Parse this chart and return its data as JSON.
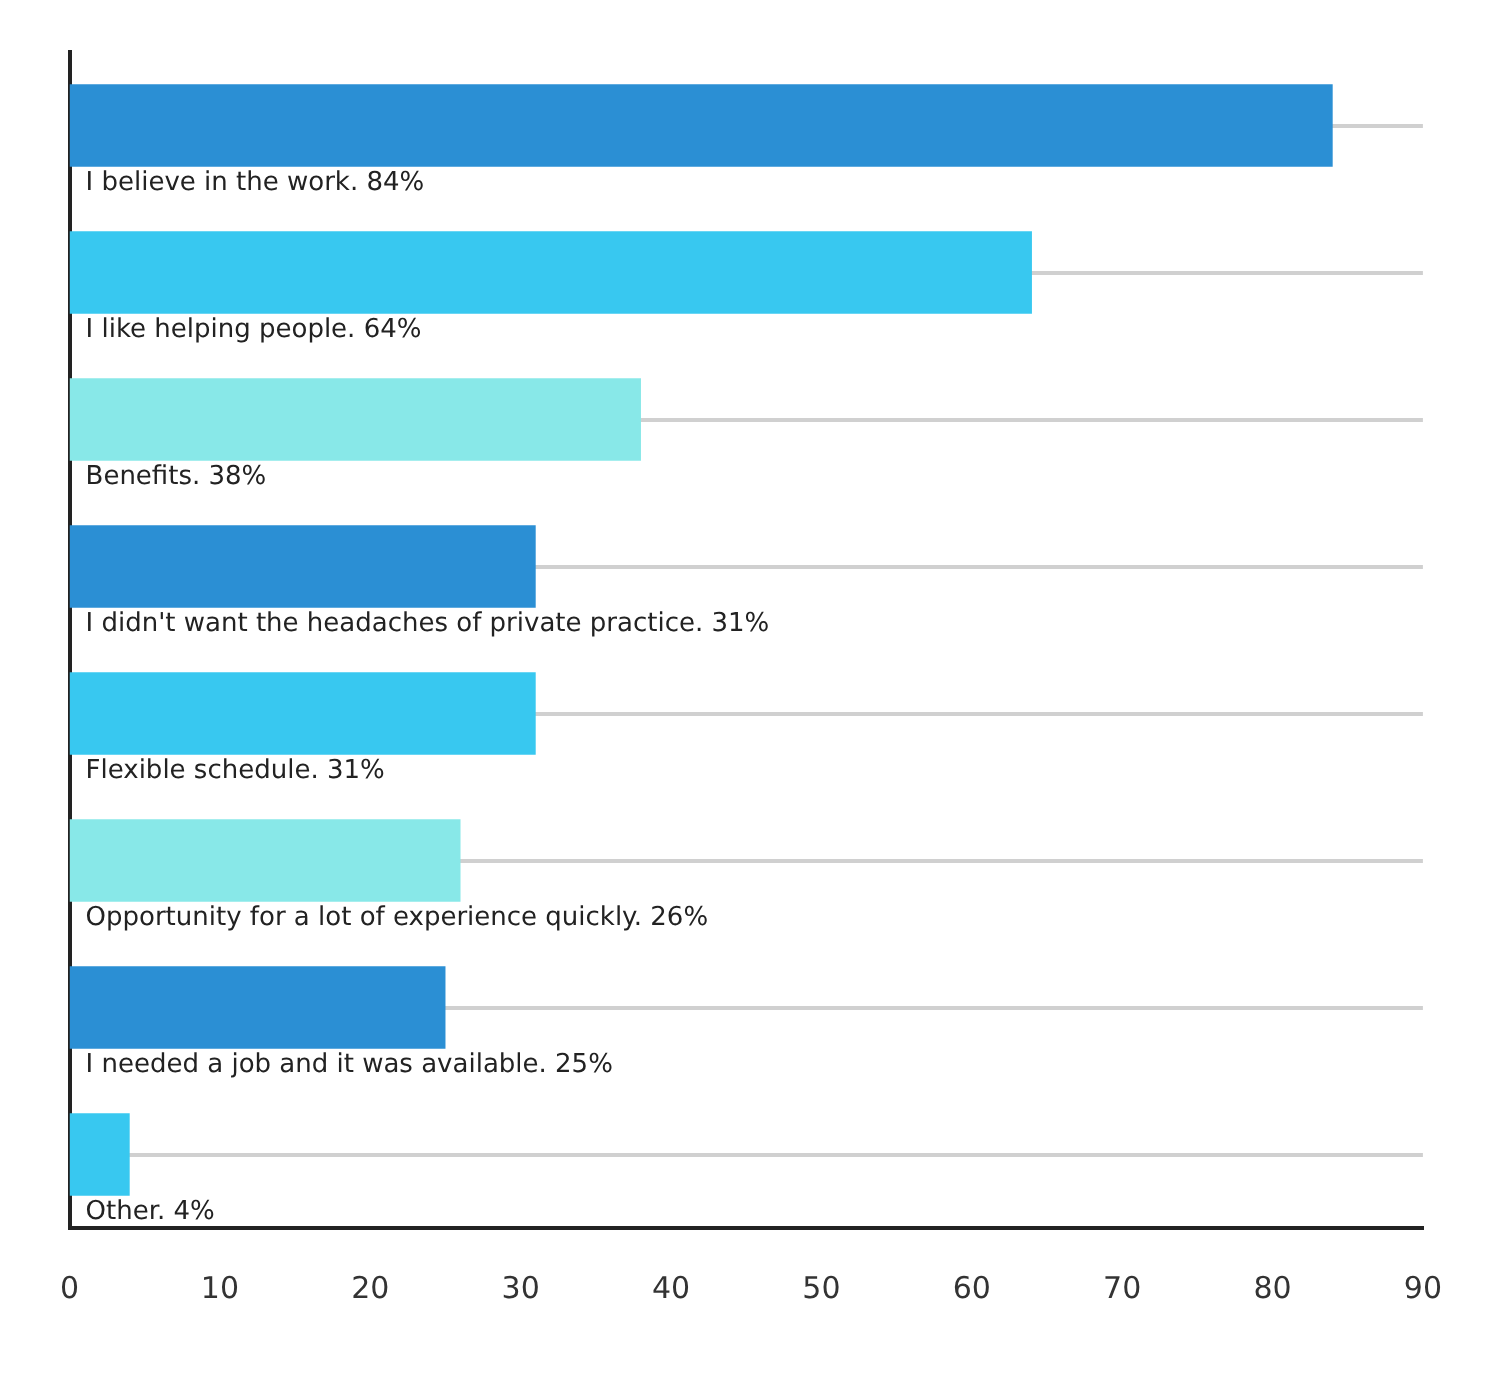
{
  "chart_data": {
    "type": "bar",
    "orientation": "horizontal",
    "categories": [
      "I believe in the work. 84%",
      "I like helping people. 64%",
      "Benefits. 38%",
      "I didn't want the headaches of private practice. 31%",
      "Flexible schedule. 31%",
      "Opportunity for a lot of experience quickly. 26%",
      "I needed a job and it was available. 25%",
      "Other. 4%"
    ],
    "values": [
      84,
      64,
      38,
      31,
      31,
      26,
      25,
      4
    ],
    "colors": [
      "#2b8fd4",
      "#38c8f0",
      "#88e8e8",
      "#2b8fd4",
      "#38c8f0",
      "#88e8e8",
      "#2b8fd4",
      "#38c8f0"
    ],
    "xlim": [
      0,
      90
    ],
    "xticks": [
      0,
      10,
      20,
      30,
      40,
      50,
      60,
      70,
      80,
      90
    ],
    "grid": "y",
    "legend": false
  }
}
